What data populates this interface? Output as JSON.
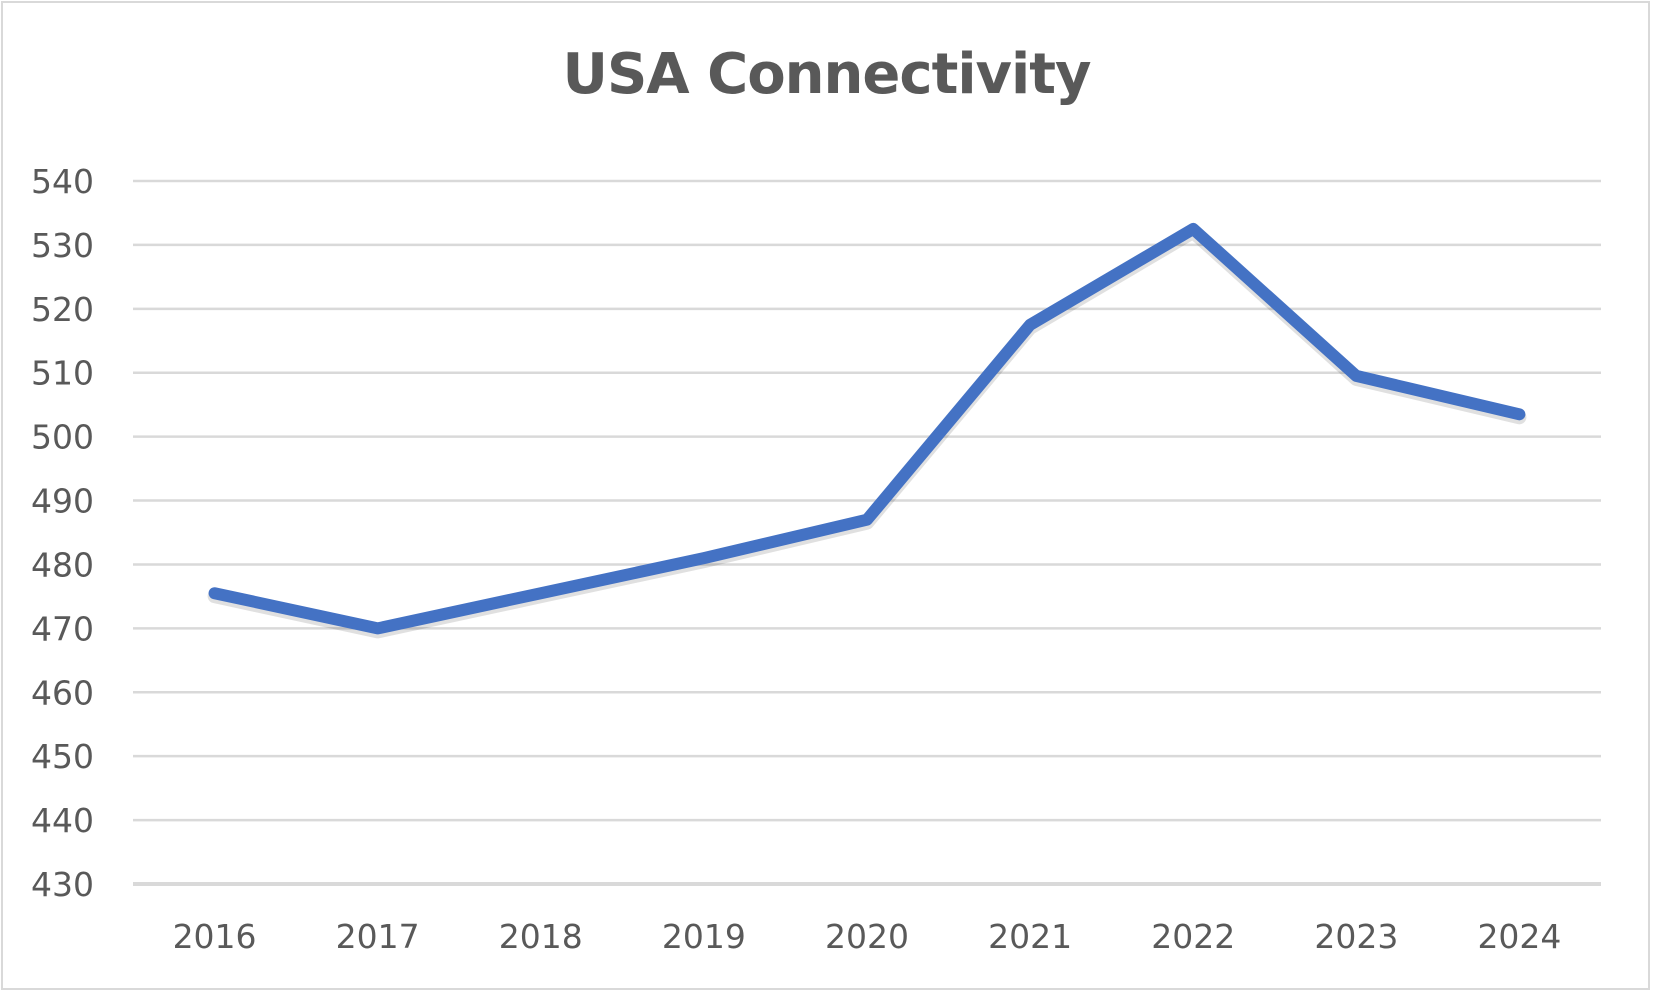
{
  "chart_data": {
    "type": "line",
    "title": "USA Connectivity",
    "xlabel": "",
    "ylabel": "",
    "categories": [
      "2016",
      "2017",
      "2018",
      "2019",
      "2020",
      "2021",
      "2022",
      "2023",
      "2024"
    ],
    "series": [
      {
        "values": [
          475.5,
          470,
          475.5,
          481,
          487,
          517.5,
          532.5,
          509.5,
          503.5
        ],
        "color": "#4472c4"
      }
    ],
    "yticks": [
      "430",
      "440",
      "450",
      "460",
      "470",
      "480",
      "490",
      "500",
      "510",
      "520",
      "530",
      "540"
    ],
    "ylim": [
      430,
      540
    ],
    "grid": true,
    "legend": "none",
    "colors": {
      "line": "#4472c4",
      "grid": "#d9d9d9",
      "text": "#595959"
    }
  }
}
